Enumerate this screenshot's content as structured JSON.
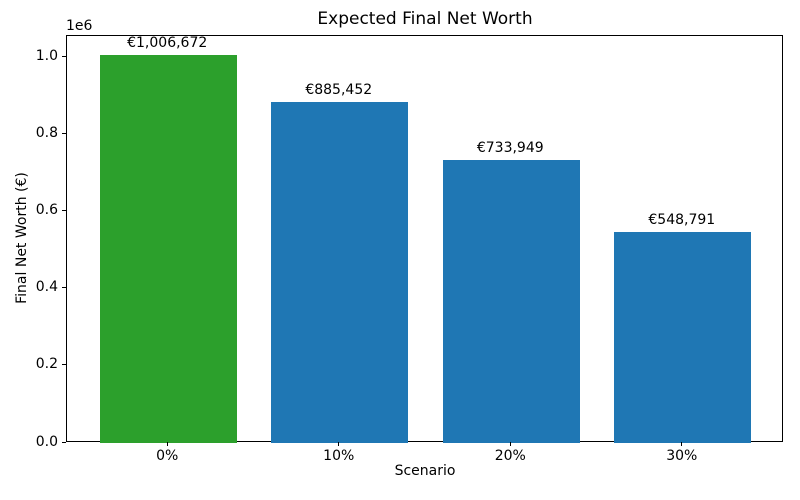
{
  "chart_data": {
    "type": "bar",
    "title": "Expected Final Net Worth",
    "xlabel": "Scenario",
    "ylabel": "Final Net Worth (€)",
    "categories": [
      "0%",
      "10%",
      "20%",
      "30%"
    ],
    "values": [
      1006672,
      885452,
      733949,
      548791
    ],
    "bar_labels": [
      "€1,006,672",
      "€885,452",
      "€733,949",
      "€548,791"
    ],
    "bar_colors": [
      "#2ca02c",
      "#1f77b4",
      "#1f77b4",
      "#1f77b4"
    ],
    "bar_width": 0.8,
    "xlim": [
      -0.59,
      3.59
    ],
    "ylim": [
      0,
      1057006
    ],
    "y_tick_values": [
      0,
      200000,
      400000,
      600000,
      800000,
      1000000
    ],
    "y_tick_labels": [
      "0.0",
      "0.2",
      "0.4",
      "0.6",
      "0.8",
      "1.0"
    ],
    "y_offset_text": "1e6",
    "grid": false,
    "legend_position": "none",
    "colors": {
      "highlight_bar": "#2ca02c",
      "default_bar": "#1f77b4",
      "axes": "#000000",
      "background": "#ffffff"
    }
  }
}
